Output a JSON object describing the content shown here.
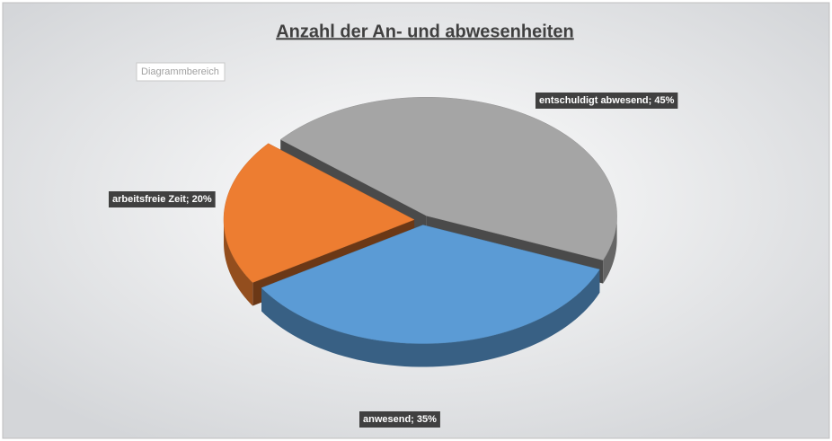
{
  "chart_data": {
    "type": "pie3d",
    "title": "Anzahl der An- und abwesenheiten",
    "tooltip": "Diagrammbereich",
    "categories": [
      "entschuldigt abwesend",
      "anwesend",
      "arbeitsfreie Zeit"
    ],
    "values": [
      45,
      35,
      20
    ],
    "value_labels": [
      "entschuldigt abwesend; 45%",
      "anwesend; 35%",
      "arbeitsfreie Zeit; 20%"
    ],
    "colors": [
      "#a5a5a5",
      "#5b9bd5",
      "#ed7d31"
    ]
  }
}
